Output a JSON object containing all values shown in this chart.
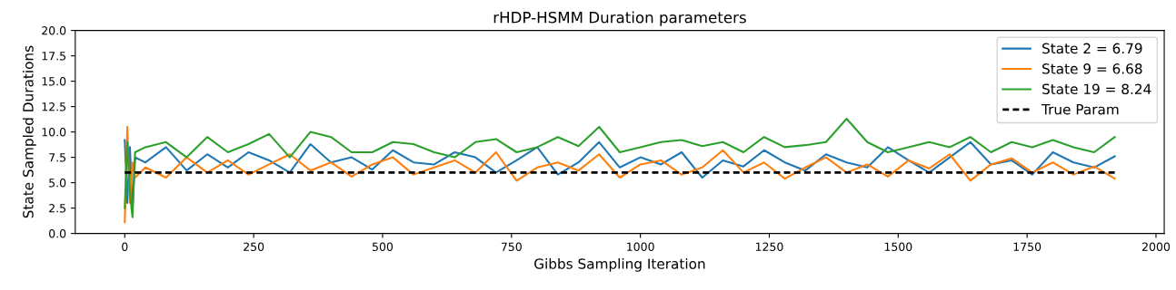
{
  "chart_data": {
    "type": "line",
    "title": "rHDP-HSMM Duration parameters",
    "xlabel": "Gibbs Sampling Iteration",
    "ylabel": "State Sampled Durations",
    "x": [
      0,
      5,
      10,
      15,
      20,
      40,
      80,
      120,
      160,
      200,
      240,
      280,
      320,
      360,
      400,
      440,
      480,
      520,
      560,
      600,
      640,
      680,
      720,
      760,
      800,
      840,
      880,
      920,
      960,
      1000,
      1040,
      1080,
      1120,
      1160,
      1200,
      1240,
      1280,
      1320,
      1360,
      1400,
      1440,
      1480,
      1520,
      1560,
      1600,
      1640,
      1680,
      1720,
      1760,
      1800,
      1840,
      1880,
      1920
    ],
    "series": [
      {
        "name": "State 2 = 6.79",
        "color": "#1f77b4",
        "values": [
          9.2,
          3.0,
          8.5,
          2.5,
          7.5,
          7.0,
          8.5,
          6.2,
          7.8,
          6.5,
          8.0,
          7.2,
          6.0,
          8.8,
          7.0,
          7.5,
          6.3,
          8.2,
          7.0,
          6.8,
          8.0,
          7.5,
          6.0,
          7.2,
          8.5,
          5.8,
          7.0,
          9.0,
          6.5,
          7.5,
          6.8,
          8.0,
          5.5,
          7.2,
          6.6,
          8.2,
          7.0,
          6.2,
          7.8,
          7.0,
          6.5,
          8.5,
          7.2,
          6.0,
          7.5,
          9.0,
          6.8,
          7.2,
          5.8,
          8.0,
          7.0,
          6.5,
          7.6
        ]
      },
      {
        "name": "State 9 = 6.68",
        "color": "#ff7f0e",
        "values": [
          1.1,
          10.5,
          3.0,
          7.0,
          5.5,
          6.5,
          5.5,
          7.5,
          6.0,
          7.2,
          5.8,
          6.8,
          7.8,
          6.2,
          7.0,
          5.6,
          6.8,
          7.5,
          5.8,
          6.5,
          7.2,
          6.0,
          8.0,
          5.2,
          6.5,
          7.0,
          6.2,
          7.8,
          5.5,
          6.8,
          7.2,
          5.8,
          6.5,
          8.2,
          6.0,
          7.0,
          5.4,
          6.5,
          7.5,
          6.0,
          6.8,
          5.6,
          7.2,
          6.4,
          7.8,
          5.2,
          6.8,
          7.4,
          6.0,
          7.0,
          5.8,
          6.6,
          5.4
        ]
      },
      {
        "name": "State 19 = 8.24",
        "color": "#2ca02c",
        "values": [
          2.5,
          9.0,
          4.0,
          1.6,
          8.0,
          8.5,
          9.0,
          7.5,
          9.5,
          8.0,
          8.8,
          9.8,
          7.5,
          10.0,
          9.5,
          8.0,
          8.0,
          9.0,
          8.8,
          8.0,
          7.5,
          9.0,
          9.3,
          8.0,
          8.5,
          9.5,
          8.6,
          10.5,
          8.0,
          8.5,
          9.0,
          9.2,
          8.6,
          9.0,
          8.0,
          9.5,
          8.5,
          8.7,
          9.0,
          11.3,
          9.0,
          8.0,
          8.5,
          9.0,
          8.5,
          9.5,
          8.0,
          9.0,
          8.5,
          9.2,
          8.5,
          8.0,
          9.5
        ]
      },
      {
        "name": "True Param",
        "color": "#000000",
        "line_style": "dashed",
        "x": [
          0,
          1920
        ],
        "values": [
          6.0,
          6.0
        ]
      }
    ],
    "xlim": [
      -96,
      2016
    ],
    "xticks": [
      0,
      250,
      500,
      750,
      1000,
      1250,
      1500,
      1750,
      2000
    ],
    "ylim": [
      0,
      20
    ],
    "yticks": [
      {
        "value": 0,
        "label": "0.0"
      },
      {
        "value": 2.5,
        "label": "2.5"
      },
      {
        "value": 5,
        "label": "5.0"
      },
      {
        "value": 7.5,
        "label": "7.5"
      },
      {
        "value": 10,
        "label": "10.0"
      },
      {
        "value": 12.5,
        "label": "12.5"
      },
      {
        "value": 15,
        "label": "15.0"
      },
      {
        "value": 17.5,
        "label": "17.5"
      },
      {
        "value": 20,
        "label": "20.0"
      }
    ],
    "grid": false,
    "legend": "top right"
  }
}
